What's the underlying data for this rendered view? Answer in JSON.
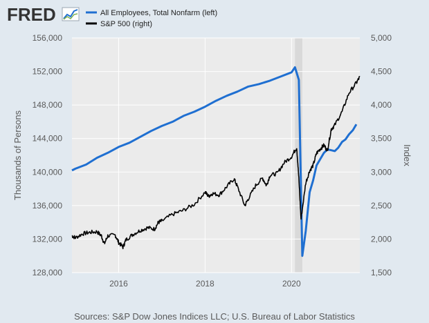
{
  "header": {
    "logo_text": "FRED",
    "logo_icon": "line-chart-icon"
  },
  "chart_data": {
    "type": "line",
    "legend": [
      {
        "name": "All Employees, Total Nonfarm (left)",
        "color": "#1f6fd1"
      },
      {
        "name": "S&P 500 (right)",
        "color": "#000000"
      }
    ],
    "legend_position": "top-left",
    "ylabel_left": "Thousands of Persons",
    "ylabel_right": "Index",
    "y_left_range": [
      128000,
      156000
    ],
    "y_right_range": [
      1500,
      5000
    ],
    "x_range": [
      2014.92,
      2021.58
    ],
    "y_left_ticks": [
      "128,000",
      "132,000",
      "136,000",
      "140,000",
      "144,000",
      "148,000",
      "152,000",
      "156,000"
    ],
    "y_left_tick_values": [
      128000,
      132000,
      136000,
      140000,
      144000,
      148000,
      152000,
      156000
    ],
    "y_right_ticks": [
      "1,500",
      "2,000",
      "2,500",
      "3,000",
      "3,500",
      "4,000",
      "4,500",
      "5,000"
    ],
    "y_right_tick_values": [
      1500,
      2000,
      2500,
      3000,
      3500,
      4000,
      4500,
      5000
    ],
    "x_ticks": [
      "2016",
      "2018",
      "2020"
    ],
    "x_tick_values": [
      2016,
      2018,
      2020
    ],
    "grid": "horizontal",
    "recession_shading": [
      2020.08,
      2020.25
    ],
    "series": [
      {
        "name": "All Employees, Total Nonfarm (left)",
        "axis": "left",
        "color": "#1f6fd1",
        "x": [
          2014.92,
          2015.0,
          2015.25,
          2015.5,
          2015.75,
          2016.0,
          2016.25,
          2016.5,
          2016.75,
          2017.0,
          2017.25,
          2017.5,
          2017.75,
          2018.0,
          2018.25,
          2018.5,
          2018.75,
          2019.0,
          2019.25,
          2019.5,
          2019.75,
          2020.0,
          2020.08,
          2020.17,
          2020.25,
          2020.33,
          2020.42,
          2020.5,
          2020.58,
          2020.67,
          2020.75,
          2020.83,
          2020.92,
          2021.0,
          2021.08,
          2021.17,
          2021.25,
          2021.33,
          2021.42,
          2021.5
        ],
        "y": [
          140200,
          140400,
          140900,
          141700,
          142300,
          143000,
          143500,
          144200,
          144900,
          145500,
          146000,
          146700,
          147200,
          147800,
          148500,
          149100,
          149600,
          150200,
          150500,
          150900,
          151400,
          151900,
          152500,
          151000,
          130000,
          133000,
          137600,
          139000,
          140800,
          141600,
          142300,
          142700,
          142600,
          142500,
          142900,
          143600,
          143900,
          144500,
          145000,
          145700
        ]
      },
      {
        "name": "S&P 500 (right)",
        "axis": "right",
        "color": "#000000",
        "x": [
          2014.92,
          2015.0,
          2015.17,
          2015.33,
          2015.5,
          2015.6,
          2015.67,
          2015.75,
          2015.92,
          2016.0,
          2016.1,
          2016.17,
          2016.33,
          2016.5,
          2016.67,
          2016.83,
          2016.92,
          2017.0,
          2017.25,
          2017.5,
          2017.75,
          2018.0,
          2018.08,
          2018.17,
          2018.33,
          2018.5,
          2018.67,
          2018.75,
          2018.92,
          2019.0,
          2019.17,
          2019.33,
          2019.42,
          2019.5,
          2019.67,
          2019.83,
          2020.0,
          2020.12,
          2020.17,
          2020.22,
          2020.33,
          2020.42,
          2020.5,
          2020.58,
          2020.67,
          2020.75,
          2020.83,
          2020.92,
          2021.0,
          2021.17,
          2021.33,
          2021.5,
          2021.58
        ],
        "y": [
          2050,
          2020,
          2080,
          2100,
          2110,
          2050,
          1930,
          2050,
          2060,
          1950,
          1880,
          1990,
          2070,
          2130,
          2170,
          2150,
          2250,
          2270,
          2370,
          2430,
          2520,
          2700,
          2640,
          2680,
          2660,
          2780,
          2900,
          2780,
          2500,
          2600,
          2800,
          2910,
          2800,
          2950,
          2980,
          3140,
          3230,
          3370,
          2900,
          2300,
          2840,
          3020,
          3100,
          3280,
          3350,
          3400,
          3320,
          3640,
          3700,
          3900,
          4180,
          4330,
          4420
        ]
      }
    ]
  },
  "footer": {
    "source": "Sources: S&P Dow Jones Indices LLC; U.S. Bureau of Labor Statistics"
  }
}
